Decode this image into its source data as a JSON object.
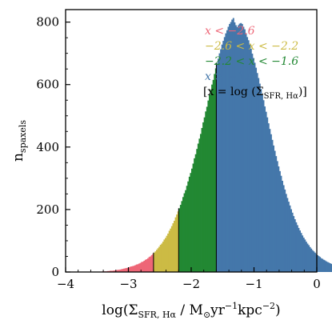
{
  "chart_data": {
    "type": "bar",
    "subtype": "histogram",
    "xlabel": "log(Σ_SFR, Hα / M⊙yr⁻¹kpc⁻²)",
    "ylabel": "n_spaxels",
    "xlim": [
      -4,
      0
    ],
    "ylim": [
      0,
      840
    ],
    "xticks": [
      -4,
      -3,
      -2,
      -1,
      0
    ],
    "xtick_labels": [
      "−4",
      "−3",
      "−2",
      "−1",
      "0"
    ],
    "yticks": [
      0,
      200,
      400,
      600,
      800
    ],
    "ytick_labels": [
      "0",
      "200",
      "400",
      "600",
      "800"
    ],
    "bin_width": 0.02,
    "bin_start": -3.6,
    "boundaries": [
      -2.6,
      -2.2,
      -1.6
    ],
    "bin_counts": [
      0,
      1,
      1,
      1,
      0,
      1,
      1,
      1,
      1,
      2,
      2,
      2,
      2,
      3,
      3,
      4,
      4,
      4,
      5,
      5,
      6,
      7,
      7,
      8,
      9,
      10,
      11,
      12,
      13,
      13,
      15,
      17,
      18,
      19,
      20,
      22,
      24,
      25,
      27,
      29,
      32,
      33,
      36,
      39,
      41,
      44,
      48,
      50,
      54,
      58,
      62,
      66,
      71,
      76,
      81,
      87,
      91,
      97,
      104,
      109,
      116,
      123,
      132,
      139,
      147,
      156,
      164,
      175,
      184,
      194,
      204,
      215,
      227,
      240,
      252,
      262,
      276,
      290,
      305,
      317,
      331,
      347,
      364,
      377,
      394,
      411,
      427,
      442,
      461,
      479,
      495,
      514,
      529,
      549,
      566,
      583,
      600,
      615,
      634,
      652,
      668,
      683,
      700,
      713,
      728,
      740,
      752,
      764,
      774,
      785,
      794,
      800,
      808,
      813,
      799,
      790,
      784,
      790,
      795,
      797,
      794,
      785,
      777,
      764,
      752,
      742,
      728,
      715,
      699,
      685,
      670,
      654,
      637,
      621,
      603,
      586,
      567,
      550,
      530,
      513,
      495,
      476,
      458,
      441,
      423,
      405,
      388,
      371,
      355,
      338,
      323,
      308,
      292,
      278,
      264,
      250,
      237,
      225,
      213,
      201,
      190,
      179,
      169,
      159,
      150,
      141,
      133,
      125,
      117,
      110,
      104,
      97,
      91,
      86,
      80,
      75,
      70,
      66,
      62,
      58,
      54,
      51,
      48,
      44,
      42,
      39,
      37,
      34,
      32,
      30,
      28,
      26,
      24,
      23,
      21,
      20,
      18,
      17,
      16,
      15,
      14,
      13,
      12,
      11,
      10,
      10,
      9,
      8,
      8,
      7,
      7,
      6,
      6,
      5,
      5,
      4,
      4,
      4,
      3,
      3,
      3,
      3,
      2,
      2,
      2,
      2,
      2,
      1,
      1,
      1,
      1,
      1,
      1,
      1,
      0
    ],
    "series": [
      {
        "name": "x < −2.6",
        "range": [
          -3.6,
          -2.6
        ],
        "color": "#ee6677"
      },
      {
        "name": "−2.6 < x < −2.2",
        "range": [
          -2.6,
          -2.2
        ],
        "color": "#ccbb44"
      },
      {
        "name": "−2.2 < x < −1.6",
        "range": [
          -2.2,
          -1.6
        ],
        "color": "#228833"
      },
      {
        "name": "x > −1.6",
        "range": [
          -1.6,
          -0.6
        ],
        "color": "#4477aa"
      }
    ],
    "legend": {
      "placement": "top-right",
      "entries": [
        "x < −2.6",
        "−2.6 < x < −2.2",
        "−2.2 < x < −1.6",
        "x > −1.6"
      ],
      "note": "[x = log (Σ_SFR, Hα)]"
    },
    "grid": false
  }
}
